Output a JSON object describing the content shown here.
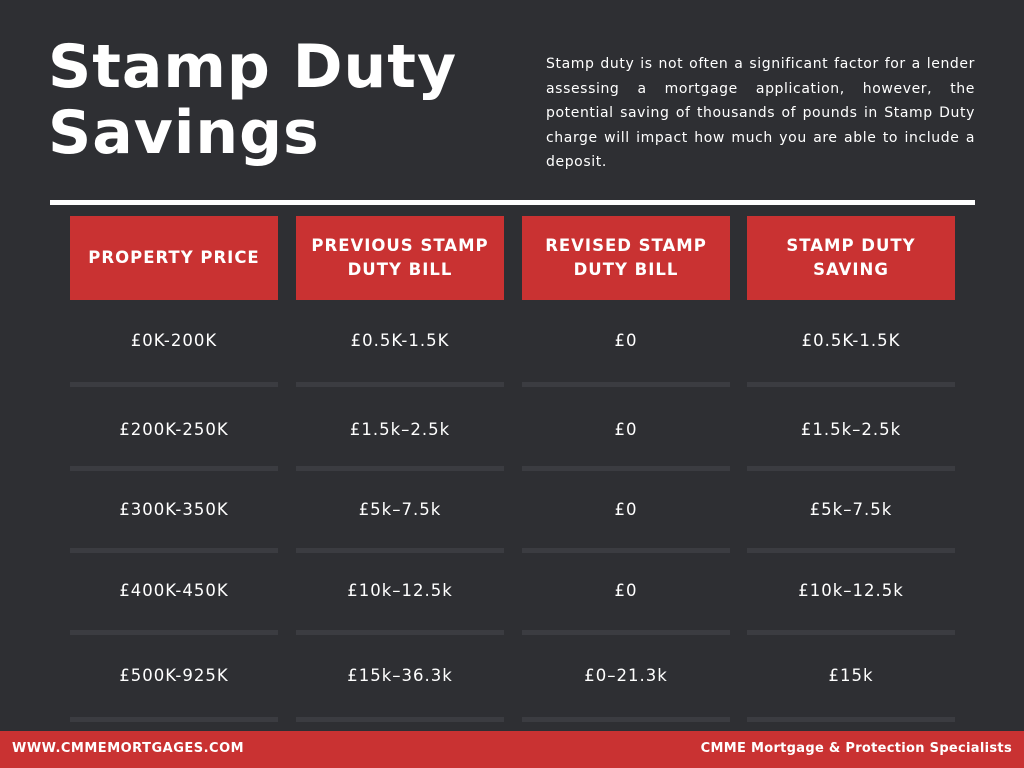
{
  "title": {
    "line1": "Stamp Duty",
    "line2": "Savings"
  },
  "intro": "Stamp duty is not often a significant factor for a lender assessing a mortgage application, however, the potential saving of thousands of pounds in Stamp Duty charge will impact how much you are able to include a deposit.",
  "table": {
    "headers": [
      "PROPERTY PRICE",
      "PREVIOUS STAMP DUTY BILL",
      "REVISED STAMP DUTY BILL",
      "STAMP DUTY SAVING"
    ],
    "rows": [
      [
        "£0K-200K",
        "£0.5K-1.5K",
        "£0",
        "£0.5K-1.5K"
      ],
      [
        "£200K-250K",
        "£1.5k–2.5k",
        "£0",
        "£1.5k–2.5k"
      ],
      [
        "£300K-350K",
        "£5k–7.5k",
        "£0",
        "£5k–7.5k"
      ],
      [
        "£400K-450K",
        "£10k–12.5k",
        "£0",
        "£10k–12.5k"
      ],
      [
        "£500K-925K",
        "£15k–36.3k",
        "£0–21.3k",
        "£15k"
      ]
    ]
  },
  "footer": {
    "website": "WWW.CMMEMORTGAGES.COM",
    "company": "CMME Mortgage & Protection Specialists"
  },
  "colors": {
    "background": "#2e2f33",
    "accent": "#c93232",
    "text": "#ffffff"
  }
}
